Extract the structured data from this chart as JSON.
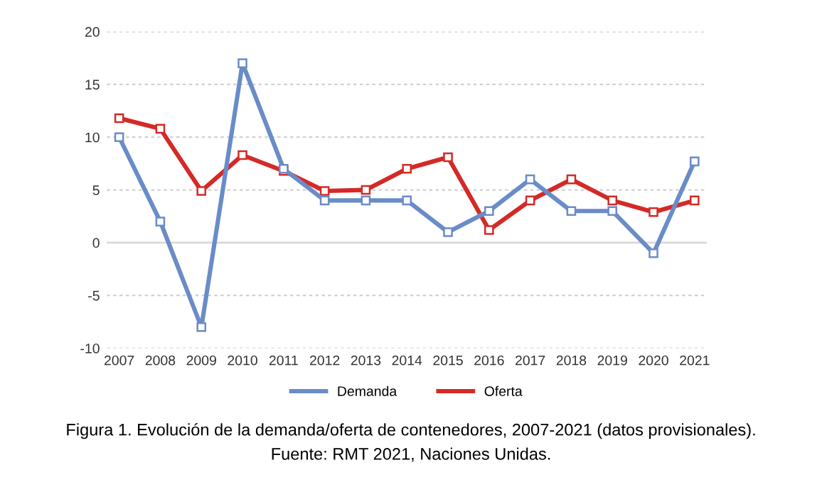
{
  "chart_data": {
    "type": "line",
    "categories": [
      "2007",
      "2008",
      "2009",
      "2010",
      "2011",
      "2012",
      "2013",
      "2014",
      "2015",
      "2016",
      "2017",
      "2018",
      "2019",
      "2020",
      "2021"
    ],
    "series": [
      {
        "name": "Demanda",
        "color": "#6a8cc7",
        "values": [
          10,
          2,
          -8,
          17,
          7,
          4,
          4,
          4,
          1,
          3,
          6,
          3,
          3,
          -1,
          7.7
        ]
      },
      {
        "name": "Oferta",
        "color": "#d42a27",
        "values": [
          11.8,
          10.8,
          4.9,
          8.3,
          6.8,
          4.9,
          5,
          7,
          8.1,
          1.2,
          4,
          6,
          4,
          2.9,
          4
        ]
      }
    ],
    "ylim": [
      -10,
      20
    ],
    "yticks": [
      -10,
      -5,
      0,
      5,
      10,
      15,
      20
    ],
    "grid": "y",
    "legend": "bottom",
    "marker": "square",
    "line_style": "solid",
    "ref_lines": [
      {
        "axis": "y",
        "value": 0,
        "color": "#d9d9d9"
      }
    ],
    "annotations": [
      "Figura 1. Evolución de la demanda/oferta de contenedores, 2007-2021 (datos provisionales).",
      "Fuente: RMT 2021, Naciones Unidas."
    ]
  }
}
